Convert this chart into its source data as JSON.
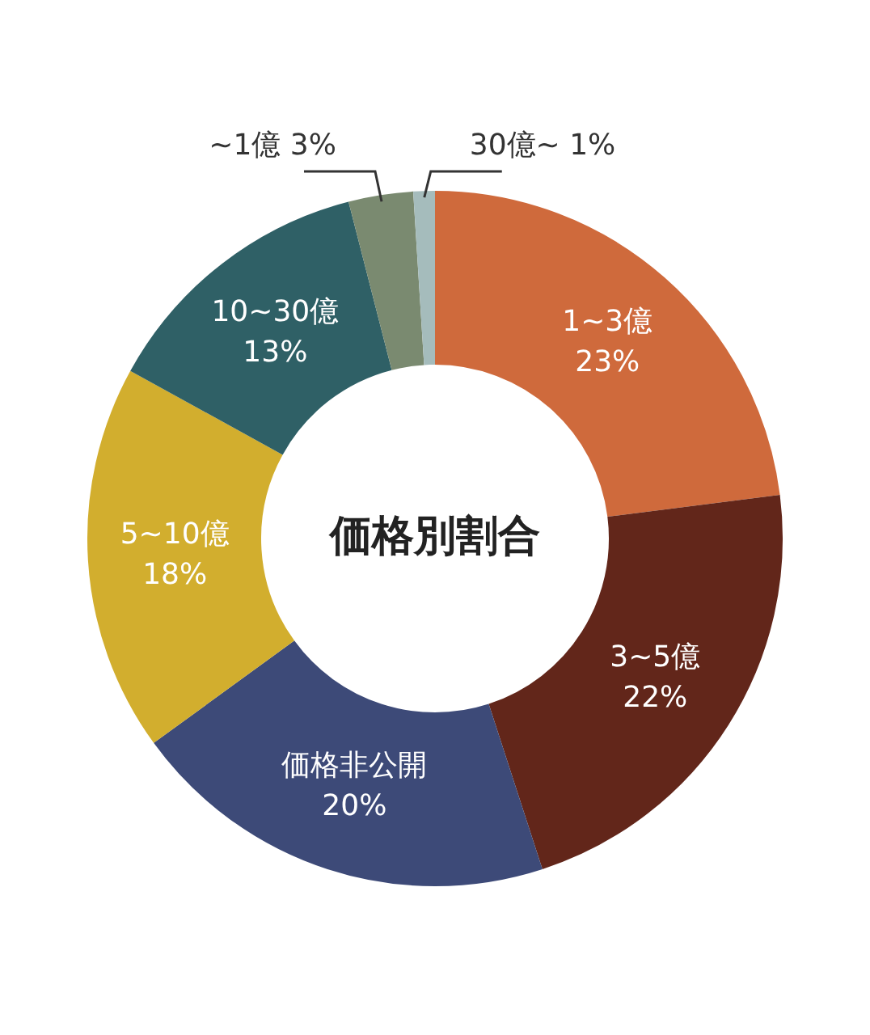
{
  "chart_data": {
    "type": "donut",
    "title": "価格別割合",
    "categories": [
      "1~3億",
      "3~5億",
      "価格非公開",
      "5~10億",
      "10~30億",
      "~1億",
      "30億~"
    ],
    "values": [
      23,
      22,
      20,
      18,
      13,
      3,
      1
    ],
    "value_labels": [
      "23%",
      "22%",
      "20%",
      "18%",
      "13%",
      "3%",
      "1%"
    ],
    "colors": [
      "#cf6a3c",
      "#62261a",
      "#3d4a78",
      "#d2ae2e",
      "#2f6066",
      "#7a8a70",
      "#a5bcbc"
    ],
    "legend": false
  }
}
